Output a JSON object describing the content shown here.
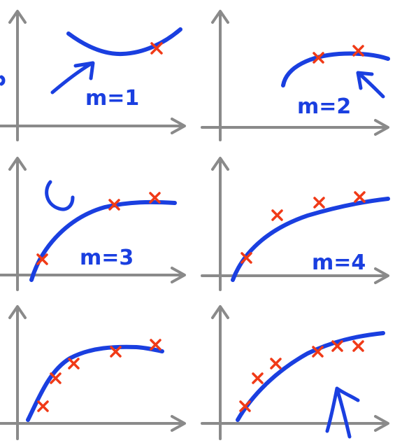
{
  "panels": [
    {
      "id": "panel-1",
      "label": "m=1"
    },
    {
      "id": "panel-2",
      "label": "m=2"
    },
    {
      "id": "panel-3",
      "label": "m=3"
    },
    {
      "id": "panel-4",
      "label": "m=4"
    },
    {
      "id": "panel-5",
      "label": ""
    },
    {
      "id": "panel-6",
      "label": ""
    }
  ],
  "colors": {
    "curve": "#1a3fe0",
    "mark": "#f03a17",
    "axis": "#8a8a8a",
    "background": "#ffffff"
  }
}
